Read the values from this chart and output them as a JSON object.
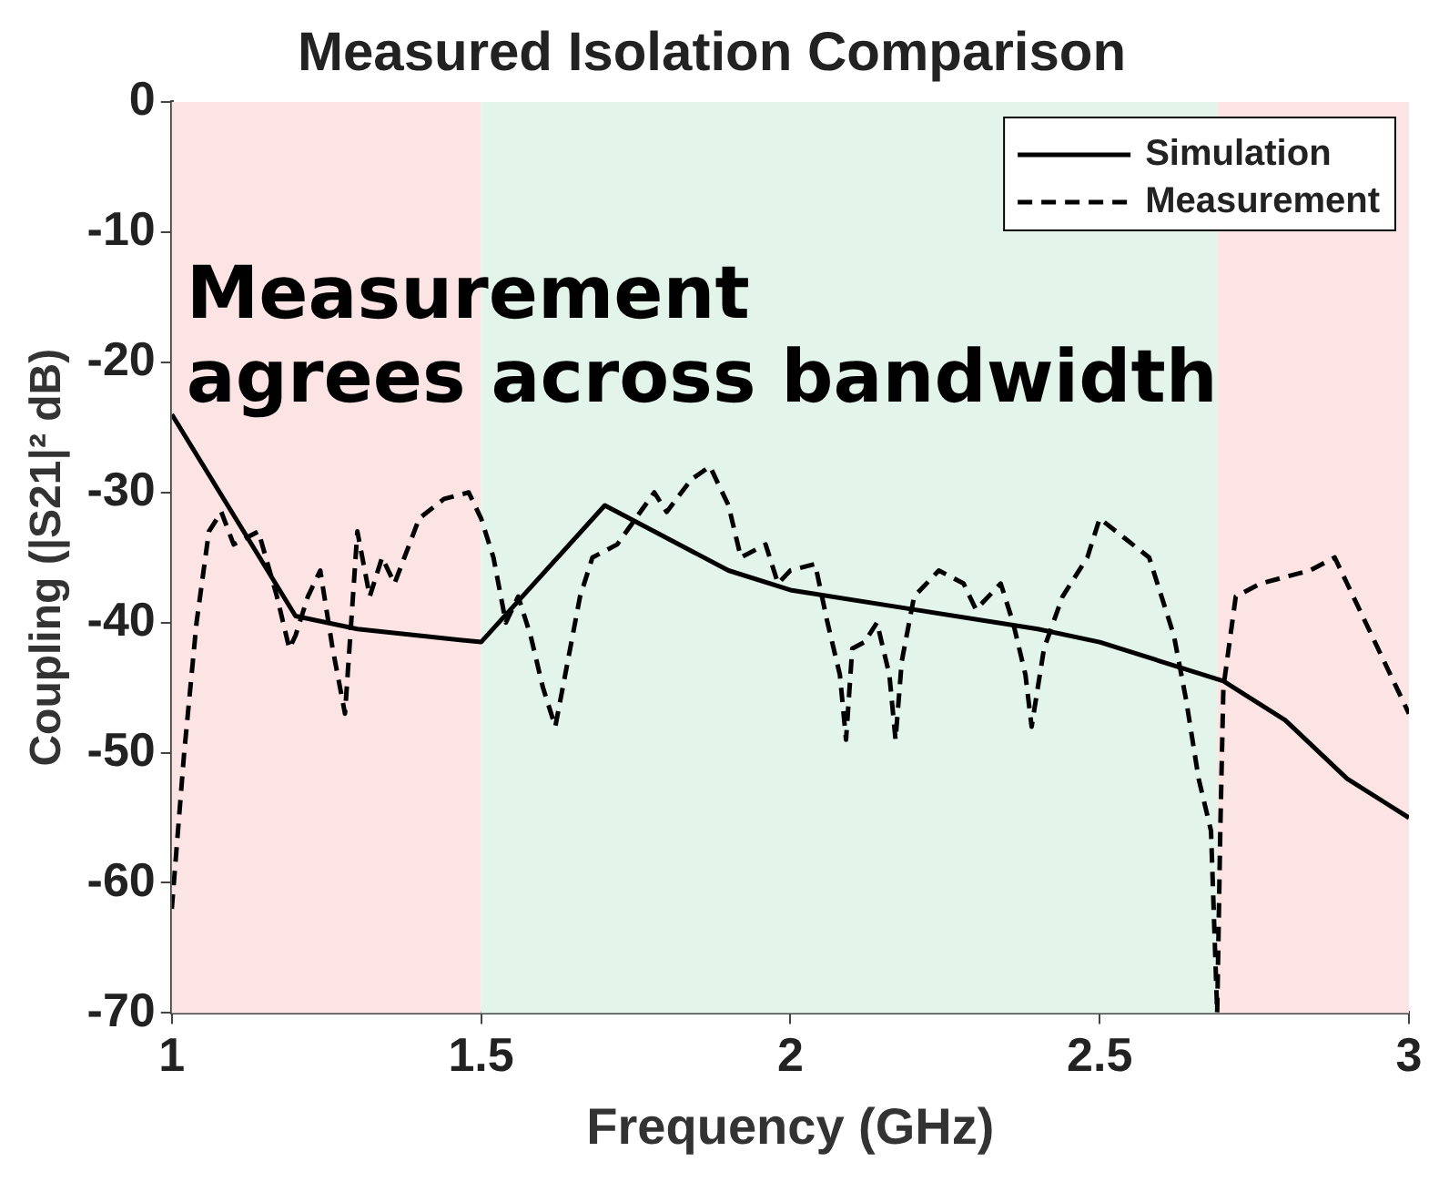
{
  "chart_data": {
    "type": "line",
    "title": "Measured Isolation Comparison",
    "xlabel": "Frequency (GHz)",
    "ylabel": "Coupling (|S21|² dB)",
    "xlim": [
      1,
      3
    ],
    "xticks": [
      1,
      1.5,
      2,
      2.5,
      3
    ],
    "ylim": [
      -70,
      0
    ],
    "yticks": [
      -70,
      -60,
      -50,
      -40,
      -30,
      -20,
      -10,
      0
    ],
    "grid": false,
    "legend": "top right",
    "marker": "none",
    "annotations": [
      "Measurement\nagrees across bandwidth"
    ],
    "bands": [
      {
        "axis": "x",
        "from": 1,
        "to": 1.5,
        "color": "#fde4e4"
      },
      {
        "axis": "x",
        "from": 1.5,
        "to": 2.69,
        "color": "#e3f4ea"
      },
      {
        "axis": "x",
        "from": 2.69,
        "to": 3,
        "color": "#fde4e4"
      }
    ],
    "series": [
      {
        "name": "Simulation",
        "color": "#000000",
        "line_style": "solid",
        "x": [
          1,
          1.2,
          1.3,
          1.4,
          1.5,
          1.7,
          1.8,
          1.9,
          2,
          2.2,
          2.4,
          2.5,
          2.6,
          2.7,
          2.8,
          2.9,
          3
        ],
        "values": [
          -24,
          -39.5,
          -40.5,
          -41,
          -41.5,
          -31,
          -33.5,
          -36,
          -37.5,
          -39,
          -40.5,
          -41.5,
          -43,
          -44.5,
          -47.5,
          -52,
          -55
        ]
      },
      {
        "name": "Measurement",
        "color": "#000000",
        "line_style": "dashed",
        "x": [
          1,
          1.02,
          1.04,
          1.06,
          1.08,
          1.1,
          1.14,
          1.17,
          1.19,
          1.2,
          1.22,
          1.24,
          1.26,
          1.28,
          1.29,
          1.3,
          1.32,
          1.34,
          1.36,
          1.4,
          1.44,
          1.48,
          1.5,
          1.52,
          1.54,
          1.56,
          1.58,
          1.6,
          1.62,
          1.64,
          1.66,
          1.68,
          1.72,
          1.75,
          1.78,
          1.8,
          1.84,
          1.87,
          1.9,
          1.92,
          1.96,
          1.98,
          2,
          2.04,
          2.06,
          2.08,
          2.09,
          2.1,
          2.12,
          2.14,
          2.16,
          2.17,
          2.18,
          2.2,
          2.24,
          2.28,
          2.3,
          2.34,
          2.36,
          2.38,
          2.39,
          2.41,
          2.44,
          2.48,
          2.5,
          2.54,
          2.58,
          2.6,
          2.62,
          2.64,
          2.66,
          2.68,
          2.69,
          2.695,
          2.7,
          2.72,
          2.76,
          2.8,
          2.84,
          2.88,
          2.9,
          2.94,
          2.98,
          3
        ],
        "values": [
          -62,
          -50,
          -40,
          -33,
          -31.5,
          -34,
          -33,
          -38,
          -42,
          -41,
          -38,
          -36,
          -42,
          -47,
          -40,
          -33,
          -38,
          -35,
          -37,
          -32,
          -30.5,
          -30,
          -32,
          -35,
          -40,
          -38,
          -41,
          -45,
          -48,
          -43,
          -38,
          -35,
          -34,
          -32,
          -30,
          -31.5,
          -29,
          -28,
          -31,
          -35,
          -34,
          -37,
          -36,
          -35.5,
          -40,
          -44,
          -49,
          -42,
          -41.5,
          -40,
          -44,
          -49,
          -43,
          -38,
          -36,
          -37,
          -39,
          -37,
          -40,
          -44,
          -48,
          -42,
          -38,
          -35,
          -32,
          -33.5,
          -35,
          -38,
          -41,
          -46,
          -52,
          -56,
          -70,
          -56,
          -45,
          -38,
          -37,
          -36.5,
          -36,
          -35,
          -37,
          -41,
          -45,
          -47
        ]
      }
    ]
  }
}
